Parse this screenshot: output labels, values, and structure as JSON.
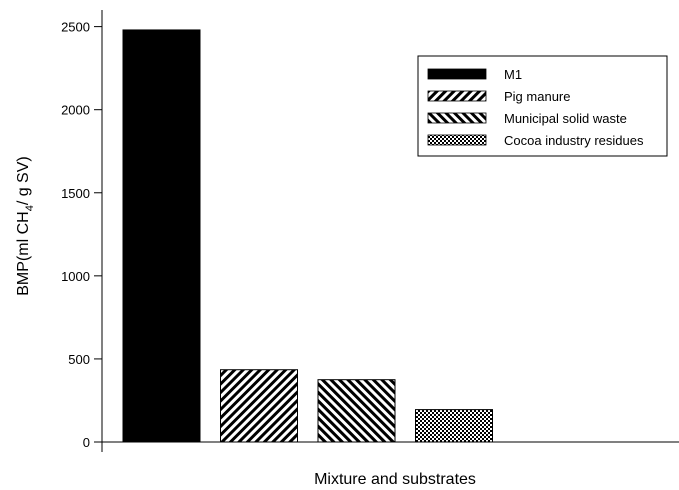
{
  "chart_data": {
    "type": "bar",
    "categories": [
      "M1",
      "Pig manure",
      "Municipal solid waste",
      "Cocoa industry residues"
    ],
    "values": [
      2480,
      435,
      375,
      195
    ],
    "patterns": [
      "solid",
      "diagonal-right",
      "diagonal-left",
      "crosshatch"
    ],
    "xlabel": "Mixture and substrates",
    "ylabel_main": "BMP(ml CH",
    "ylabel_sub": "4",
    "ylabel_tail": "/ g SV)",
    "ylim": [
      0,
      2600
    ],
    "yticks": [
      0,
      500,
      1000,
      1500,
      2000,
      2500
    ],
    "legend_position": "top-right",
    "grid": false,
    "bar_color": "#000000"
  }
}
